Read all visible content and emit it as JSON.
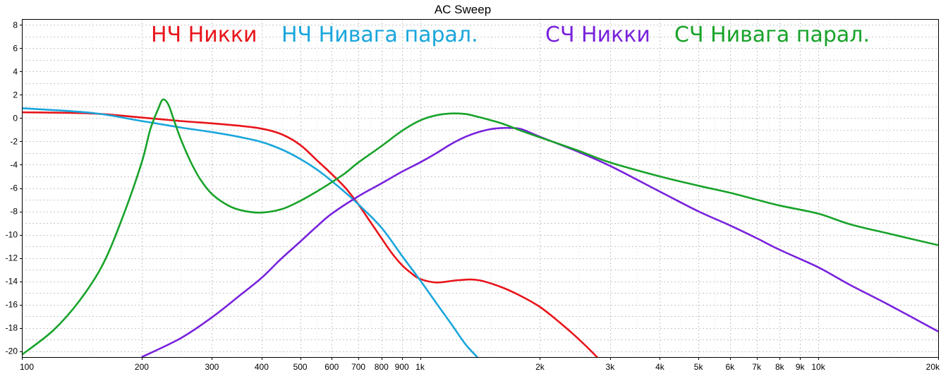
{
  "chart_data": {
    "type": "line",
    "title": "AC Sweep",
    "x_scale": "log",
    "xlim": [
      100,
      20000
    ],
    "ylim": [
      -20.5,
      8.5
    ],
    "grid": true,
    "x_ticks": [
      {
        "v": 100,
        "label": "100"
      },
      {
        "v": 200,
        "label": "200"
      },
      {
        "v": 300,
        "label": "300"
      },
      {
        "v": 400,
        "label": "400"
      },
      {
        "v": 500,
        "label": "500"
      },
      {
        "v": 600,
        "label": "600"
      },
      {
        "v": 700,
        "label": "700"
      },
      {
        "v": 800,
        "label": "800"
      },
      {
        "v": 900,
        "label": "900"
      },
      {
        "v": 1000,
        "label": "1k"
      },
      {
        "v": 2000,
        "label": "2k"
      },
      {
        "v": 3000,
        "label": "3k"
      },
      {
        "v": 4000,
        "label": "4k"
      },
      {
        "v": 5000,
        "label": "5k"
      },
      {
        "v": 6000,
        "label": "6k"
      },
      {
        "v": 7000,
        "label": "7k"
      },
      {
        "v": 8000,
        "label": "8k"
      },
      {
        "v": 9000,
        "label": "9k"
      },
      {
        "v": 10000,
        "label": "10k"
      },
      {
        "v": 20000,
        "label": "20k"
      }
    ],
    "y_ticks": [
      8,
      6,
      4,
      2,
      0,
      -2,
      -4,
      -6,
      -8,
      -10,
      -12,
      -14,
      -16,
      -18,
      -20
    ],
    "legend_placement": "top",
    "series": [
      {
        "name": "НЧ Никки",
        "color": "#e8141a",
        "x": [
          100,
          150,
          200,
          250,
          300,
          350,
          400,
          450,
          500,
          550,
          600,
          650,
          700,
          750,
          800,
          850,
          900,
          950,
          1000,
          1100,
          1250,
          1400,
          1600,
          1800,
          2000,
          2200,
          2400,
          2600,
          2800
        ],
        "y": [
          0.5,
          0.4,
          0.05,
          -0.25,
          -0.45,
          -0.65,
          -0.9,
          -1.4,
          -2.3,
          -3.6,
          -4.8,
          -6.0,
          -7.4,
          -8.9,
          -10.3,
          -11.6,
          -12.6,
          -13.3,
          -13.8,
          -14.1,
          -13.9,
          -13.9,
          -14.5,
          -15.3,
          -16.2,
          -17.3,
          -18.4,
          -19.5,
          -20.6
        ]
      },
      {
        "name": "НЧ Нивага парал.",
        "color": "#1aa6dc",
        "x": [
          100,
          150,
          200,
          250,
          300,
          350,
          400,
          450,
          500,
          550,
          600,
          650,
          700,
          800,
          900,
          1000,
          1100,
          1200,
          1300,
          1400
        ],
        "y": [
          0.85,
          0.45,
          -0.25,
          -0.8,
          -1.2,
          -1.6,
          -2.05,
          -2.7,
          -3.5,
          -4.4,
          -5.4,
          -6.4,
          -7.4,
          -9.4,
          -11.8,
          -13.9,
          -15.9,
          -17.7,
          -19.4,
          -20.6
        ]
      },
      {
        "name": "СЧ Никки",
        "color": "#7822dc",
        "x": [
          200,
          250,
          300,
          350,
          400,
          450,
          500,
          550,
          600,
          700,
          800,
          900,
          1000,
          1100,
          1200,
          1300,
          1400,
          1500,
          1600,
          1700,
          1800,
          2000,
          2500,
          3000,
          4000,
          5000,
          6000,
          7000,
          8000,
          10000,
          12000,
          15000,
          20000
        ],
        "y": [
          -20.5,
          -18.9,
          -17.1,
          -15.3,
          -13.7,
          -12.0,
          -10.6,
          -9.3,
          -8.2,
          -6.7,
          -5.6,
          -4.6,
          -3.8,
          -3.0,
          -2.2,
          -1.6,
          -1.2,
          -0.95,
          -0.85,
          -0.85,
          -0.95,
          -1.6,
          -2.9,
          -4.1,
          -6.3,
          -8.0,
          -9.2,
          -10.3,
          -11.3,
          -12.8,
          -14.3,
          -16.0,
          -18.3
        ]
      },
      {
        "name": "СЧ Нивага парал.",
        "color": "#18a32a",
        "x": [
          100,
          120,
          140,
          160,
          180,
          200,
          210,
          220,
          226,
          233,
          240,
          250,
          265,
          280,
          300,
          330,
          360,
          400,
          450,
          500,
          550,
          600,
          650,
          700,
          800,
          900,
          1000,
          1100,
          1200,
          1300,
          1400,
          1600,
          1800,
          2000,
          2500,
          3000,
          4000,
          5000,
          6000,
          7000,
          8000,
          10000,
          12000,
          15000,
          20000
        ],
        "y": [
          -20.3,
          -18.2,
          -15.6,
          -12.5,
          -8.3,
          -3.8,
          -1.0,
          0.8,
          1.6,
          1.2,
          0.0,
          -1.7,
          -3.7,
          -5.2,
          -6.5,
          -7.5,
          -7.95,
          -8.1,
          -7.8,
          -7.1,
          -6.3,
          -5.5,
          -4.7,
          -3.8,
          -2.4,
          -1.1,
          -0.2,
          0.25,
          0.4,
          0.35,
          0.1,
          -0.45,
          -1.1,
          -1.65,
          -2.8,
          -3.8,
          -5.0,
          -5.8,
          -6.4,
          -7.0,
          -7.5,
          -8.2,
          -9.1,
          -9.9,
          -10.9
        ]
      }
    ]
  }
}
